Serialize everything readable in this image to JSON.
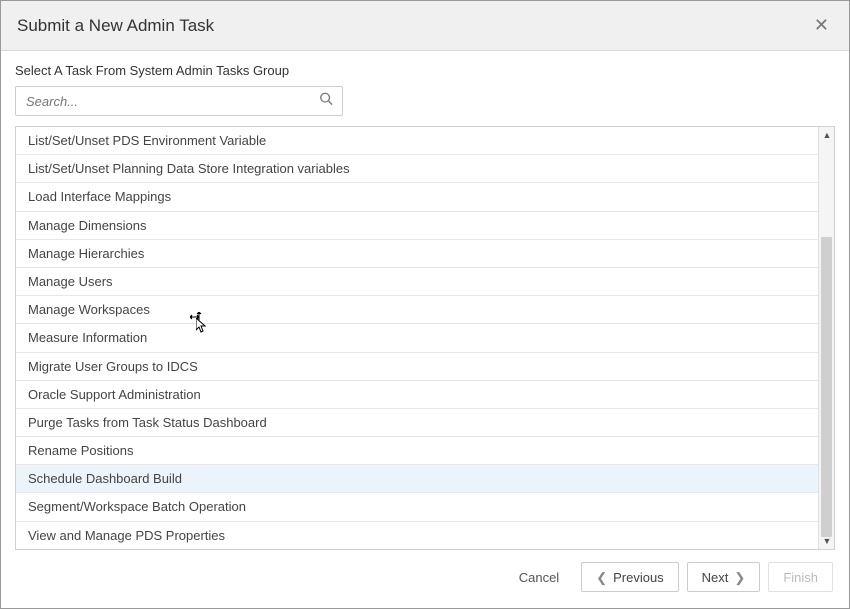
{
  "dialog": {
    "title": "Submit a New Admin Task",
    "subtitle": "Select A Task From System Admin Tasks Group"
  },
  "search": {
    "placeholder": "Search..."
  },
  "tasks": [
    {
      "label": "List/Set/Unset PDS Environment Variable",
      "selected": false
    },
    {
      "label": "List/Set/Unset Planning Data Store Integration variables",
      "selected": false
    },
    {
      "label": "Load Interface Mappings",
      "selected": false
    },
    {
      "label": "Manage Dimensions",
      "selected": false
    },
    {
      "label": "Manage Hierarchies",
      "selected": false
    },
    {
      "label": "Manage Users",
      "selected": false
    },
    {
      "label": "Manage Workspaces",
      "selected": false
    },
    {
      "label": "Measure Information",
      "selected": false
    },
    {
      "label": "Migrate User Groups to IDCS",
      "selected": false
    },
    {
      "label": "Oracle Support Administration",
      "selected": false
    },
    {
      "label": "Purge Tasks from Task Status Dashboard",
      "selected": false
    },
    {
      "label": "Rename Positions",
      "selected": false
    },
    {
      "label": "Schedule Dashboard Build",
      "selected": true
    },
    {
      "label": "Segment/Workspace Batch Operation",
      "selected": false
    },
    {
      "label": "View and Manage PDS Properties",
      "selected": false
    }
  ],
  "buttons": {
    "cancel": "Cancel",
    "previous": "Previous",
    "next": "Next",
    "finish": "Finish"
  },
  "colors": {
    "header_bg": "#f0f0f0",
    "border": "#d0d0d0",
    "selected_row": "#ecf4fb",
    "text": "#444444",
    "disabled_text": "#bbbbbb"
  }
}
